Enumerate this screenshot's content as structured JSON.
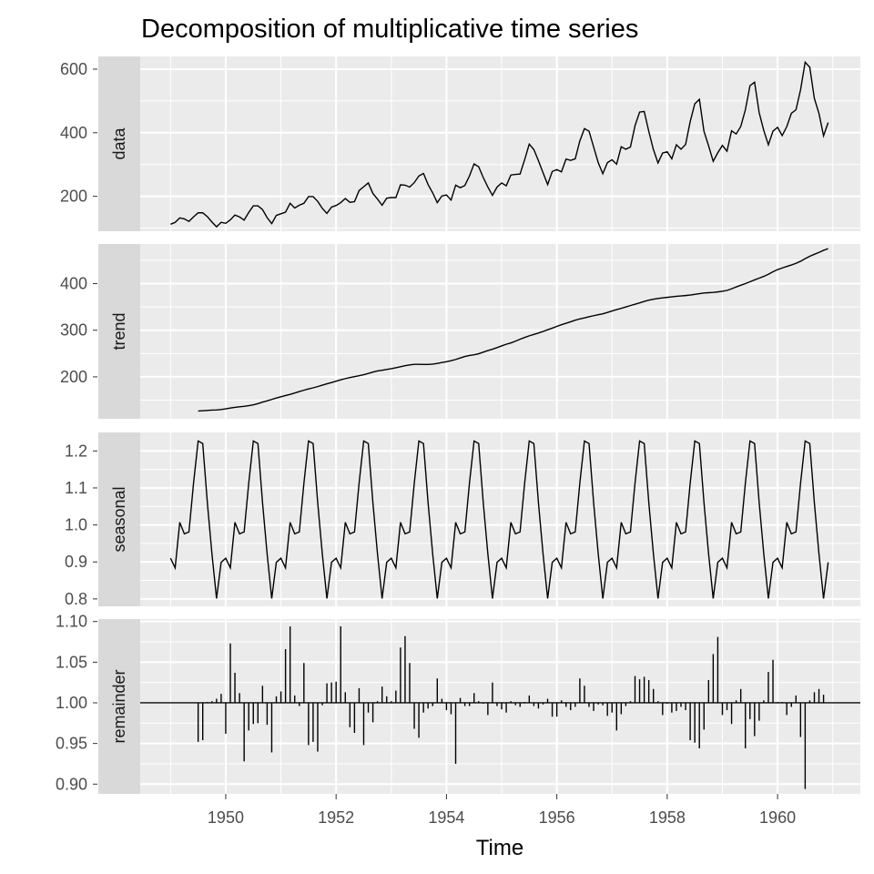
{
  "chart_data": {
    "type": "line",
    "title": "Decomposition of multiplicative time series",
    "xlabel": "Time",
    "x_ticks": [
      "1950",
      "1952",
      "1954",
      "1956",
      "1958",
      "1960"
    ],
    "x_tick_values": [
      1950,
      1952,
      1954,
      1956,
      1958,
      1960
    ],
    "xlim": [
      1948.45,
      1961.5
    ],
    "start": 1949,
    "frequency": 12,
    "panels": [
      {
        "name": "data",
        "ylim": [
          90,
          640
        ],
        "y_ticks": [
          "200",
          "400",
          "600"
        ],
        "y_tick_values": [
          200,
          400,
          600
        ],
        "values": [
          112,
          118,
          132,
          129,
          121,
          135,
          148,
          148,
          136,
          119,
          104,
          118,
          115,
          126,
          141,
          135,
          125,
          149,
          170,
          170,
          158,
          133,
          114,
          140,
          145,
          150,
          178,
          163,
          172,
          178,
          199,
          199,
          184,
          162,
          146,
          166,
          171,
          180,
          193,
          181,
          183,
          218,
          230,
          242,
          209,
          191,
          172,
          194,
          196,
          196,
          236,
          235,
          229,
          243,
          264,
          272,
          237,
          211,
          180,
          201,
          204,
          188,
          235,
          227,
          234,
          264,
          302,
          293,
          259,
          229,
          203,
          229,
          242,
          233,
          267,
          269,
          270,
          315,
          364,
          347,
          312,
          274,
          237,
          278,
          284,
          277,
          317,
          313,
          318,
          374,
          413,
          405,
          355,
          306,
          271,
          306,
          315,
          301,
          356,
          348,
          355,
          422,
          465,
          467,
          404,
          347,
          305,
          336,
          340,
          318,
          362,
          348,
          363,
          435,
          491,
          505,
          404,
          359,
          310,
          337,
          360,
          342,
          406,
          396,
          420,
          472,
          548,
          559,
          463,
          407,
          362,
          405,
          417,
          391,
          419,
          461,
          472,
          535,
          622,
          606,
          508,
          461,
          390,
          432
        ]
      },
      {
        "name": "trend",
        "ylim": [
          110,
          485
        ],
        "y_ticks": [
          "200",
          "300",
          "400"
        ],
        "y_tick_values": [
          200,
          300,
          400
        ],
        "values": [
          null,
          null,
          null,
          null,
          null,
          null,
          126.8,
          127.3,
          127.9,
          128.6,
          129.0,
          129.8,
          131.3,
          133.1,
          134.6,
          135.8,
          136.8,
          138.2,
          140.0,
          142.6,
          145.7,
          148.5,
          151.5,
          154.6,
          157.3,
          159.9,
          162.4,
          165.3,
          168.4,
          171.3,
          174.0,
          176.4,
          179.1,
          182.2,
          185.0,
          187.8,
          190.7,
          193.7,
          196.2,
          198.5,
          200.5,
          202.5,
          204.7,
          207.2,
          210.3,
          212.6,
          214.2,
          215.9,
          217.6,
          219.6,
          221.7,
          223.8,
          225.6,
          226.8,
          226.9,
          226.6,
          226.6,
          227.3,
          228.8,
          230.7,
          232.5,
          234.6,
          237.2,
          240.5,
          243.6,
          245.8,
          247.4,
          249.5,
          253.0,
          256.4,
          259.3,
          262.7,
          266.4,
          269.9,
          272.8,
          276.5,
          280.6,
          284.4,
          288.0,
          291.1,
          294.0,
          297.3,
          301.0,
          304.5,
          308.3,
          311.8,
          315.0,
          318.2,
          321.6,
          324.2,
          326.5,
          328.9,
          331.2,
          333.2,
          335.3,
          338.2,
          341.3,
          344.2,
          346.9,
          349.8,
          352.9,
          355.8,
          358.6,
          361.8,
          364.5,
          366.4,
          368.1,
          369.3,
          370.5,
          371.7,
          372.8,
          373.5,
          374.4,
          375.5,
          376.9,
          378.5,
          379.8,
          380.5,
          381.1,
          382.2,
          383.5,
          385.4,
          388.8,
          392.9,
          396.5,
          400.0,
          403.9,
          408.0,
          411.8,
          415.5,
          420.0,
          425.5,
          430.0,
          433.5,
          436.8,
          440.0,
          443.5,
          448.0,
          453.5,
          458.7,
          462.9,
          466.9,
          471.4,
          475.0,
          null,
          null,
          null,
          null,
          null,
          null
        ]
      },
      {
        "name": "seasonal",
        "ylim": [
          0.78,
          1.25
        ],
        "y_ticks": [
          "0.8",
          "0.9",
          "1.0",
          "1.1",
          "1.2"
        ],
        "y_tick_values": [
          0.8,
          0.9,
          1.0,
          1.1,
          1.2
        ],
        "pattern": [
          0.91,
          0.884,
          1.007,
          0.976,
          0.981,
          1.113,
          1.227,
          1.22,
          1.06,
          0.922,
          0.801,
          0.899
        ]
      },
      {
        "name": "remainder",
        "ylim": [
          0.888,
          1.103
        ],
        "y_ticks": [
          "0.90",
          "0.95",
          "1.00",
          "1.05",
          "1.10"
        ],
        "y_tick_values": [
          0.9,
          0.95,
          1.0,
          1.05,
          1.1
        ],
        "baseline": 1.0,
        "values": [
          null,
          null,
          null,
          null,
          null,
          null,
          0.952,
          0.954,
          1.001,
          1.002,
          1.005,
          1.011,
          0.962,
          1.073,
          1.037,
          1.012,
          0.928,
          0.966,
          0.974,
          0.975,
          1.021,
          0.973,
          0.939,
          1.008,
          1.014,
          1.066,
          1.094,
          1.009,
          0.996,
          1.049,
          0.948,
          0.952,
          0.94,
          0.997,
          1.024,
          1.025,
          1.026,
          1.094,
          1.013,
          0.97,
          0.963,
          1.018,
          0.948,
          0.988,
          0.976,
          1.002,
          1.02,
          1.008,
          1.002,
          1.015,
          1.068,
          1.082,
          1.049,
          0.968,
          0.957,
          0.988,
          0.993,
          0.996,
          1.03,
          1.005,
          0.991,
          0.986,
          0.925,
          1.006,
          0.996,
          0.996,
          1.012,
          1.002,
          0.999,
          0.985,
          1.025,
          0.996,
          0.992,
          0.988,
          1.002,
          0.997,
          0.995,
          1.001,
          1.009,
          0.996,
          0.993,
          0.998,
          1.005,
          0.983,
          0.983,
          1.003,
          0.995,
          0.991,
          0.995,
          1.03,
          1.021,
          0.995,
          0.99,
          0.998,
          0.997,
          0.984,
          0.988,
          0.966,
          0.986,
          0.996,
          1.002,
          1.033,
          1.029,
          1.032,
          1.028,
          1.017,
          1.002,
          0.985,
          0.999,
          0.988,
          0.99,
          0.995,
          0.991,
          0.954,
          0.951,
          0.944,
          0.967,
          1.028,
          1.06,
          1.081,
          0.985,
          0.991,
          0.974,
          1.003,
          1.017,
          0.944,
          0.98,
          0.959,
          0.978,
          1.003,
          1.038,
          1.053,
          1.001,
          1.001,
          0.985,
          0.995,
          1.009,
          0.958,
          0.894,
          1.003,
          1.013,
          1.017,
          1.01,
          null,
          null,
          null,
          null,
          null,
          null
        ]
      }
    ]
  }
}
